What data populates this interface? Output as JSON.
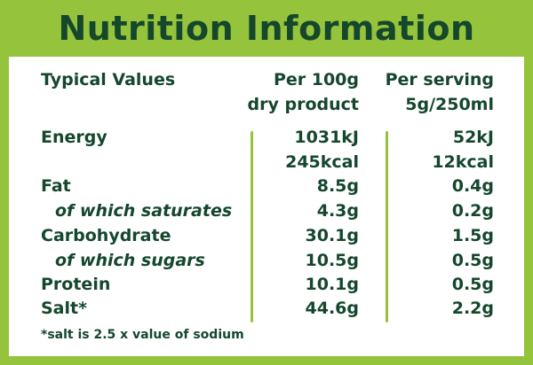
{
  "title": "Nutrition Information",
  "header": {
    "label": "Typical Values",
    "col1_line1": "Per 100g",
    "col1_line2": "dry product",
    "col2_line1": "Per serving",
    "col2_line2": "5g/250ml"
  },
  "rows": [
    {
      "label": "Energy",
      "per100g": "1031kJ",
      "perServing": "52kJ"
    },
    {
      "label": "",
      "per100g": "245kcal",
      "perServing": "12kcal"
    },
    {
      "label": "Fat",
      "per100g": "8.5g",
      "perServing": "0.4g"
    },
    {
      "label": "of which saturates",
      "per100g": "4.3g",
      "perServing": "0.2g"
    },
    {
      "label": "Carbohydrate",
      "per100g": "30.1g",
      "perServing": "1.5g"
    },
    {
      "label": "of which sugars",
      "per100g": "10.5g",
      "perServing": "0.5g"
    },
    {
      "label": "Protein",
      "per100g": "10.1g",
      "perServing": "0.5g"
    },
    {
      "label": "Salt*",
      "per100g": "44.6g",
      "perServing": "2.2g"
    }
  ],
  "footnote": "*salt is 2.5 x value of sodium",
  "colors": {
    "border": "#95c33b",
    "text": "#14472c"
  }
}
